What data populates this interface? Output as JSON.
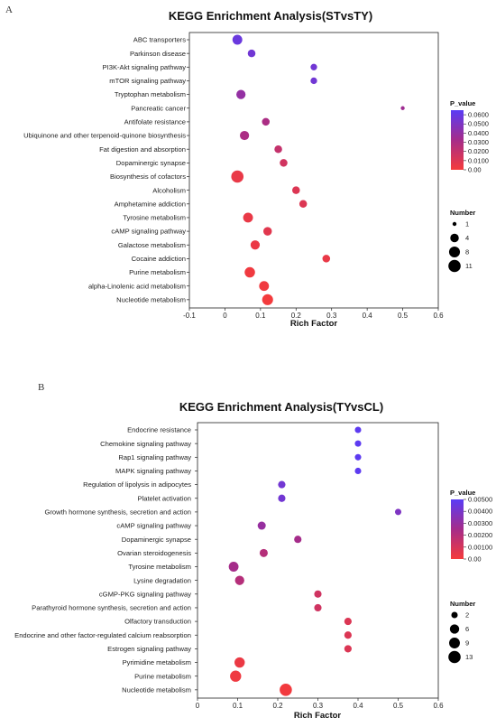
{
  "chart_data": [
    {
      "panel_label": "A",
      "type": "scatter",
      "title": "KEGG Enrichment Analysis(STvsTY)",
      "xlabel": "Rich Factor",
      "ylabel": "",
      "xlim": [
        -0.1,
        0.6
      ],
      "xticks": [
        "-0.1",
        "0",
        "0.1",
        "0.2",
        "0.3",
        "0.4",
        "0.5",
        "0.6"
      ],
      "pathways": [
        "ABC transporters",
        "Parkinson disease",
        "PI3K-Akt signaling pathway",
        "mTOR signaling pathway",
        "Tryptophan metabolism",
        "Pancreatic cancer",
        "Antifolate resistance",
        "Ubiquinone and other terpenoid-quinone biosynthesis",
        "Fat digestion and absorption",
        "Dopaminergic synapse",
        "Biosynthesis of cofactors",
        "Alcoholism",
        "Amphetamine addiction",
        "Tyrosine metabolism",
        "cAMP signaling pathway",
        "Galactose metabolism",
        "Cocaine addiction",
        "Purine metabolism",
        "alpha-Linolenic acid metabolism",
        "Nucleotide metabolism"
      ],
      "rich_factor": [
        0.035,
        0.075,
        0.25,
        0.25,
        0.045,
        0.5,
        0.115,
        0.055,
        0.15,
        0.165,
        0.035,
        0.2,
        0.22,
        0.065,
        0.12,
        0.085,
        0.285,
        0.07,
        0.11,
        0.12
      ],
      "number": [
        6,
        3,
        2,
        2,
        5,
        1,
        3,
        5,
        3,
        3,
        11,
        3,
        3,
        6,
        4,
        5,
        3,
        7,
        6,
        8
      ],
      "p_value": [
        0.058,
        0.055,
        0.055,
        0.055,
        0.04,
        0.035,
        0.03,
        0.03,
        0.02,
        0.015,
        0.005,
        0.01,
        0.01,
        0.005,
        0.008,
        0.004,
        0.005,
        0.002,
        0.002,
        0.001
      ],
      "color_legend": {
        "title": "P_value",
        "range": [
          0,
          0.065
        ],
        "ticks": [
          "0.0600",
          "0.0500",
          "0.0400",
          "0.0300",
          "0.0200",
          "0.0100",
          "0.00"
        ],
        "tick_values": [
          0.06,
          0.05,
          0.04,
          0.03,
          0.02,
          0.01,
          0
        ]
      },
      "size_legend": {
        "title": "Number",
        "labels": [
          "1",
          "4",
          "8",
          "11"
        ],
        "values": [
          1,
          4,
          8,
          11
        ],
        "max": 11
      }
    },
    {
      "panel_label": "B",
      "type": "scatter",
      "title": "KEGG Enrichment Analysis(TYvsCL)",
      "xlabel": "Rich Factor",
      "ylabel": "",
      "xlim": [
        0,
        0.6
      ],
      "xticks": [
        "0",
        "0.1",
        "0.2",
        "0.3",
        "0.4",
        "0.5",
        "0.6"
      ],
      "pathways": [
        "Endocrine resistance",
        "Chemokine signaling pathway",
        "Rap1 signaling pathway",
        "MAPK signaling pathway",
        "Regulation of lipolysis in adipocytes",
        "Platelet activation",
        "Growth hormone synthesis, secretion and action",
        "cAMP signaling pathway",
        "Dopaminergic synapse",
        "Ovarian steroidogenesis",
        "Tyrosine metabolism",
        "Lysine degradation",
        "cGMP-PKG signaling pathway",
        "Parathyroid hormone synthesis, secretion and action",
        "Olfactory transduction",
        "Endocrine and other factor-regulated calcium reabsorption",
        "Estrogen signaling pathway",
        "Pyrimidine metabolism",
        "Purine metabolism",
        "Nucleotide metabolism"
      ],
      "rich_factor": [
        0.4,
        0.4,
        0.4,
        0.4,
        0.21,
        0.21,
        0.5,
        0.16,
        0.25,
        0.165,
        0.09,
        0.105,
        0.3,
        0.3,
        0.375,
        0.375,
        0.375,
        0.105,
        0.095,
        0.22
      ],
      "number": [
        2,
        2,
        2,
        2,
        3,
        3,
        2,
        4,
        3,
        4,
        7,
        6,
        3,
        3,
        3,
        3,
        3,
        8,
        10,
        13
      ],
      "p_value": [
        0.0049,
        0.0049,
        0.0049,
        0.0049,
        0.0042,
        0.0042,
        0.0038,
        0.003,
        0.0025,
        0.002,
        0.0025,
        0.002,
        0.0012,
        0.0012,
        0.0008,
        0.0008,
        0.0008,
        0.0003,
        0.0002,
        0.0001
      ],
      "color_legend": {
        "title": "P_value",
        "range": [
          0,
          0.005
        ],
        "ticks": [
          "0.00500",
          "0.00400",
          "0.00300",
          "0.00200",
          "0.00100",
          "0.00"
        ],
        "tick_values": [
          0.005,
          0.004,
          0.003,
          0.002,
          0.001,
          0
        ]
      },
      "size_legend": {
        "title": "Number",
        "labels": [
          "2",
          "6",
          "9",
          "13"
        ],
        "values": [
          2,
          6,
          9,
          13
        ],
        "max": 13
      }
    }
  ]
}
